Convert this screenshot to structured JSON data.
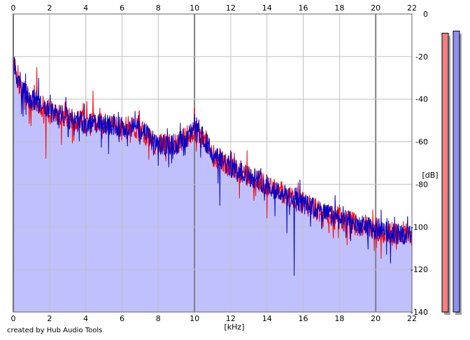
{
  "credit": "created by Hub Audio Tools",
  "colors": {
    "background": "#ffffff",
    "fill": "#c0c0ff",
    "grid_major": "#808080",
    "grid_minor": "#c0c0c0",
    "series_red": "#ff0000",
    "series_blue": "#0000cc",
    "meter_left": "#f08080",
    "meter_right": "#9090f0"
  },
  "chart_data": {
    "type": "line",
    "xlabel": "[kHz]",
    "ylabel": "[dB]",
    "xlim": [
      0,
      22
    ],
    "ylim": [
      -140,
      0
    ],
    "x_ticks": [
      0,
      2,
      4,
      6,
      8,
      10,
      12,
      14,
      16,
      18,
      20,
      22
    ],
    "y_ticks": [
      0,
      -20,
      -40,
      -60,
      -80,
      -100,
      -120,
      -140
    ],
    "grid": true,
    "envelope": {
      "x": [
        0,
        0.5,
        1,
        2,
        3,
        4,
        5,
        6,
        7,
        8,
        9,
        10,
        10.5,
        11,
        12,
        13,
        14,
        15,
        16,
        17,
        18,
        19,
        20,
        21,
        22
      ],
      "y": [
        -25,
        -36,
        -40,
        -46,
        -49,
        -51,
        -52,
        -53,
        -54,
        -62,
        -61,
        -55,
        -58,
        -66,
        -72,
        -76,
        -80,
        -85,
        -89,
        -93,
        -96,
        -99,
        -101,
        -103,
        -104
      ]
    },
    "series": [
      {
        "color": "#ff0000",
        "noise_db": 5.5,
        "peaks": [
          {
            "x": 0.1,
            "y": -21
          },
          {
            "x": 1.3,
            "y": -25
          },
          {
            "x": 4.4,
            "y": -36
          },
          {
            "x": 10.0,
            "y": -44
          },
          {
            "x": 12.9,
            "y": -64
          }
        ],
        "dips": [
          {
            "x": 1.8,
            "y": -68
          },
          {
            "x": 14.0,
            "y": -96
          },
          {
            "x": 20.3,
            "y": -115
          }
        ]
      },
      {
        "color": "#0000cc",
        "noise_db": 5.0,
        "peaks": [
          {
            "x": 0.05,
            "y": -20
          },
          {
            "x": 1.4,
            "y": -30
          },
          {
            "x": 2.9,
            "y": -39
          },
          {
            "x": 10.0,
            "y": -47
          },
          {
            "x": 12.0,
            "y": -64
          },
          {
            "x": 20.3,
            "y": -92
          }
        ],
        "dips": [
          {
            "x": 15.5,
            "y": -123
          },
          {
            "x": 11.4,
            "y": -90
          },
          {
            "x": 15.1,
            "y": -103
          },
          {
            "x": 20.6,
            "y": -113
          }
        ]
      }
    ],
    "meters": [
      {
        "channel": "left",
        "color": "#f08080",
        "level_db": -9
      },
      {
        "channel": "right",
        "color": "#9090f0",
        "level_db": -8
      }
    ]
  }
}
